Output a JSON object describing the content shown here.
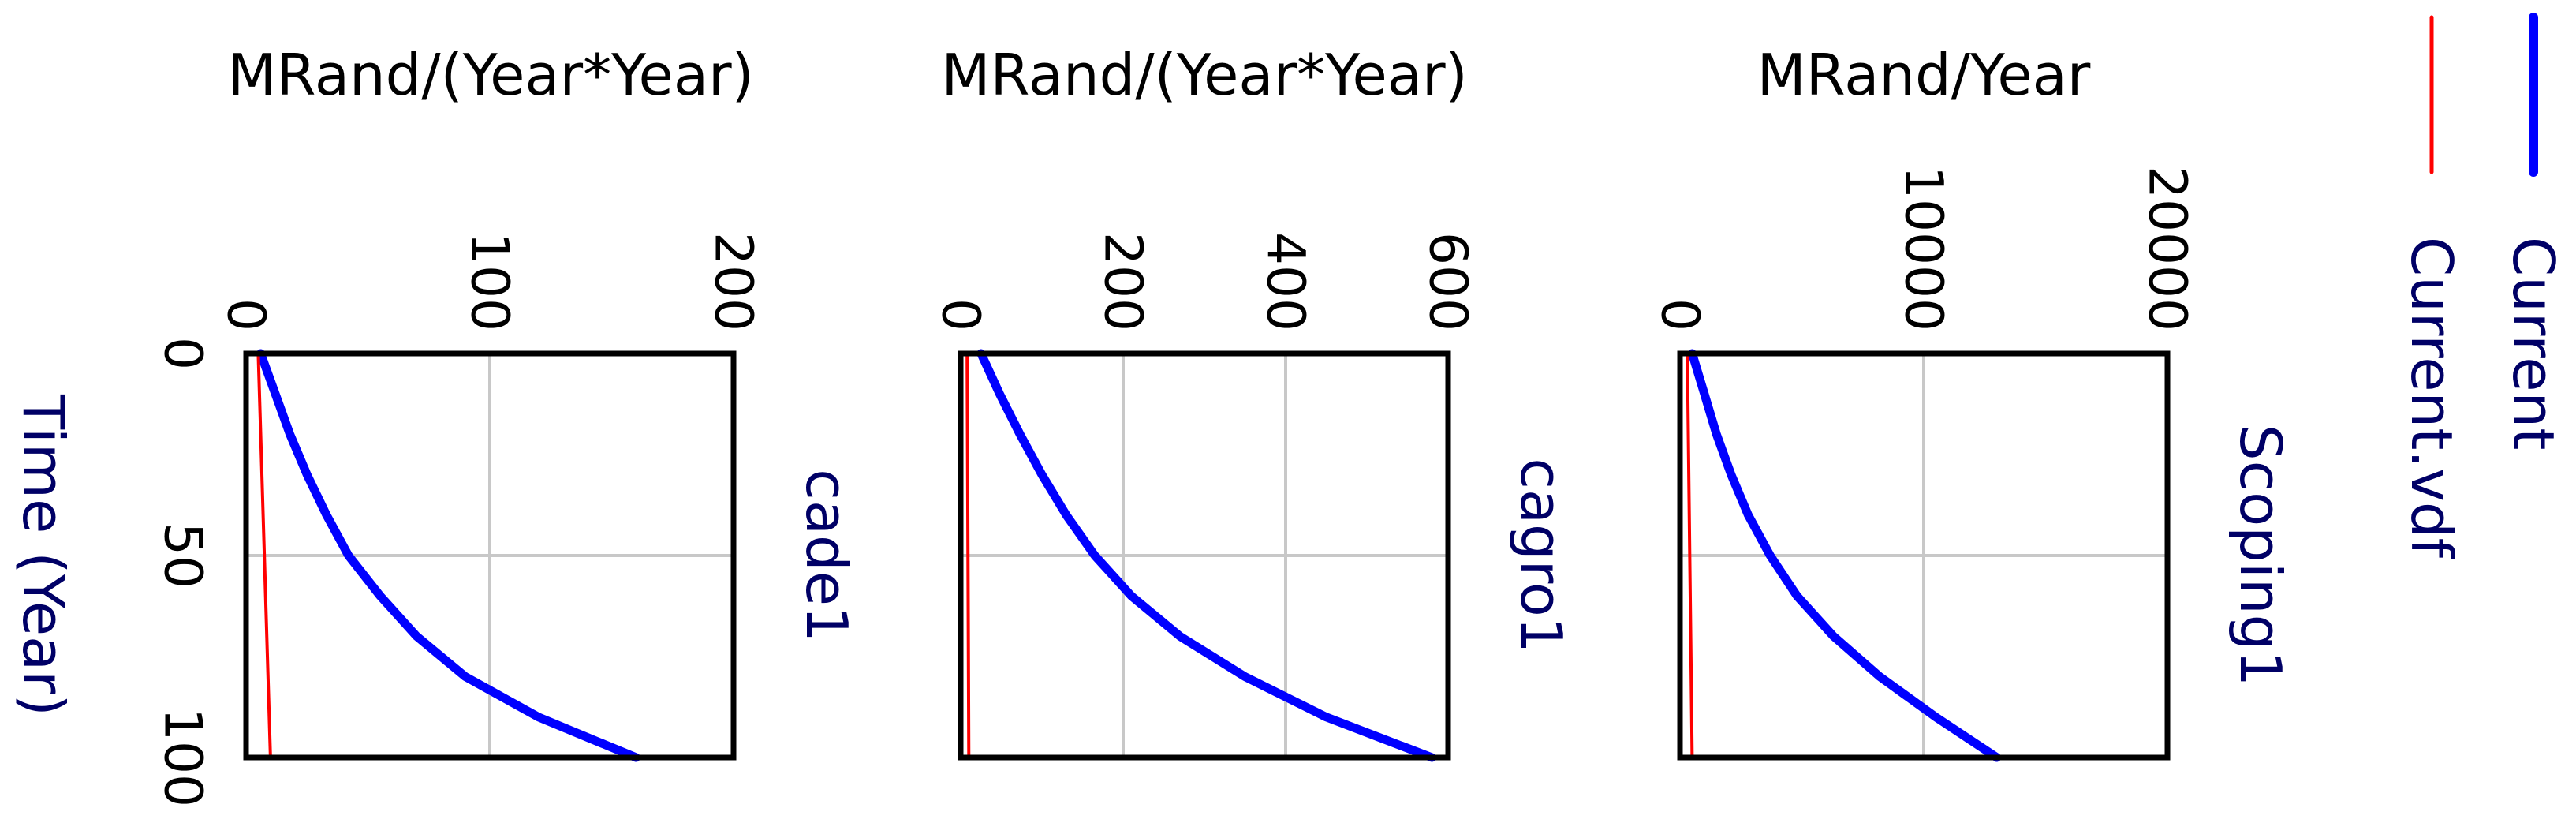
{
  "chart_data": [
    {
      "type": "line",
      "panel": "cade1",
      "ylabel": "cade1",
      "units": "MRand/(Year*Year)",
      "xlabel": "Time (Year)",
      "xlim": [
        0,
        100
      ],
      "ylim": [
        0,
        200
      ],
      "x_ticks": [
        "0",
        "50",
        "100"
      ],
      "y_ticks": [
        "0",
        "100",
        "200"
      ],
      "grid": true,
      "series": [
        {
          "name": "Current",
          "color": "#0000ff",
          "x": [
            0,
            10,
            20,
            30,
            40,
            50,
            60,
            70,
            80,
            90,
            100
          ],
          "y": [
            6,
            12,
            18,
            25,
            33,
            42,
            55,
            70,
            90,
            120,
            160
          ]
        },
        {
          "name": "Current.vdf",
          "color": "#ff0000",
          "x": [
            0,
            100
          ],
          "y": [
            5,
            10
          ]
        }
      ]
    },
    {
      "type": "line",
      "panel": "cagro1",
      "ylabel": "cagro1",
      "units": "MRand/(Year*Year)",
      "xlabel": "Time (Year)",
      "xlim": [
        0,
        100
      ],
      "ylim": [
        0,
        600
      ],
      "x_ticks": [
        "0",
        "50",
        "100"
      ],
      "y_ticks": [
        "0",
        "200",
        "400",
        "600"
      ],
      "grid": true,
      "series": [
        {
          "name": "Current",
          "color": "#0000ff",
          "x": [
            0,
            10,
            20,
            30,
            40,
            50,
            60,
            70,
            80,
            90,
            100
          ],
          "y": [
            25,
            48,
            73,
            100,
            130,
            165,
            210,
            270,
            350,
            450,
            580
          ]
        },
        {
          "name": "Current.vdf",
          "color": "#ff0000",
          "x": [
            0,
            100
          ],
          "y": [
            8,
            10
          ]
        }
      ]
    },
    {
      "type": "line",
      "panel": "Scoping1",
      "ylabel": "Scoping1",
      "units": "MRand/Year",
      "xlabel": "Time (Year)",
      "xlim": [
        0,
        100
      ],
      "ylim": [
        0,
        20000
      ],
      "x_ticks": [
        "0",
        "50",
        "100"
      ],
      "y_ticks": [
        "0",
        "10000",
        "20000"
      ],
      "grid": true,
      "series": [
        {
          "name": "Current",
          "color": "#0000ff",
          "x": [
            0,
            10,
            20,
            30,
            40,
            50,
            60,
            70,
            80,
            90,
            100
          ],
          "y": [
            500,
            1000,
            1500,
            2100,
            2800,
            3700,
            4800,
            6300,
            8200,
            10500,
            13000
          ]
        },
        {
          "name": "Current.vdf",
          "color": "#ff0000",
          "x": [
            0,
            100
          ],
          "y": [
            300,
            500
          ]
        }
      ]
    }
  ],
  "legend": [
    {
      "name": "Current",
      "color": "#0000ff"
    },
    {
      "name": "Current.vdf",
      "color": "#ff0000"
    }
  ]
}
